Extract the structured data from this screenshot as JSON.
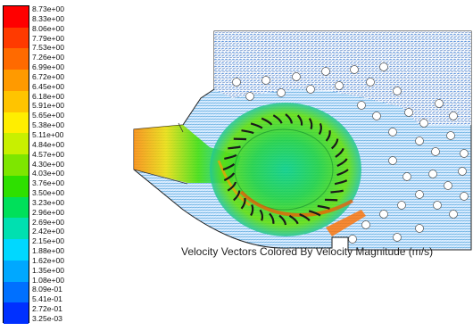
{
  "colorbar": {
    "labels": [
      "8.73e+00",
      "8.33e+00",
      "8.06e+00",
      "7.79e+00",
      "7.53e+00",
      "7.26e+00",
      "6.99e+00",
      "6.72e+00",
      "6.45e+00",
      "6.18e+00",
      "5.91e+00",
      "5.65e+00",
      "5.38e+00",
      "5.11e+00",
      "4.84e+00",
      "4.57e+00",
      "4.30e+00",
      "4.03e+00",
      "3.76e+00",
      "3.50e+00",
      "3.23e+00",
      "2.96e+00",
      "2.69e+00",
      "2.42e+00",
      "2.15e+00",
      "1.88e+00",
      "1.62e+00",
      "1.35e+00",
      "1.08e+00",
      "8.09e-01",
      "5.41e-01",
      "2.72e-01",
      "3.25e-03"
    ],
    "colors": [
      "#ff0000",
      "#ff3a00",
      "#ff6a00",
      "#ff9a00",
      "#ffc400",
      "#ffee00",
      "#c8f000",
      "#7ee600",
      "#2ee000",
      "#00e05a",
      "#00e0b0",
      "#00d8ff",
      "#00a8ff",
      "#0070ff",
      "#0030ff"
    ]
  },
  "caption": "Velocity Vectors Colored By Velocity Magnitude (m/s)"
}
